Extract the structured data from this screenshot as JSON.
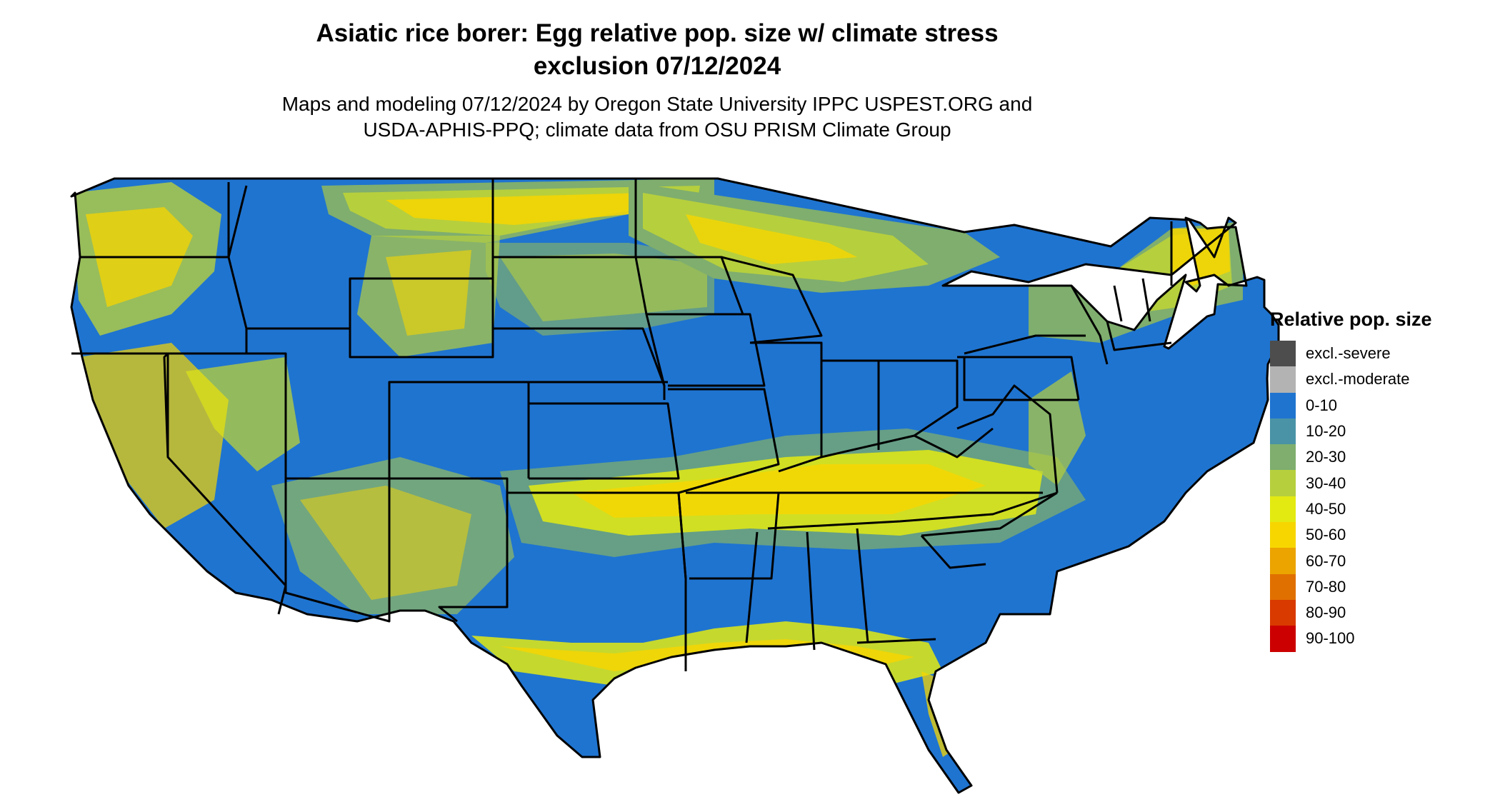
{
  "title_line1": "Asiatic rice borer: Egg relative pop. size w/ climate stress",
  "title_line2": "exclusion 07/12/2024",
  "subtitle_line1": "Maps and modeling 07/12/2024 by Oregon State University IPPC USPEST.ORG and",
  "subtitle_line2": "USDA-APHIS-PPQ; climate data from OSU PRISM Climate Group",
  "legend": {
    "title": "Relative pop. size",
    "items": [
      {
        "label": "excl.-severe",
        "color": "#4d4d4d"
      },
      {
        "label": "excl.-moderate",
        "color": "#b3b3b3"
      },
      {
        "label": "0-10",
        "color": "#1f74d0"
      },
      {
        "label": "10-20",
        "color": "#4a93a6"
      },
      {
        "label": "20-30",
        "color": "#7fae6e"
      },
      {
        "label": "30-40",
        "color": "#b6cf3d"
      },
      {
        "label": "40-50",
        "color": "#e3ea12"
      },
      {
        "label": "50-60",
        "color": "#f7d600"
      },
      {
        "label": "60-70",
        "color": "#eba400"
      },
      {
        "label": "70-80",
        "color": "#e07000"
      },
      {
        "label": "80-90",
        "color": "#d83a00"
      },
      {
        "label": "90-100",
        "color": "#cc0000"
      }
    ]
  }
}
